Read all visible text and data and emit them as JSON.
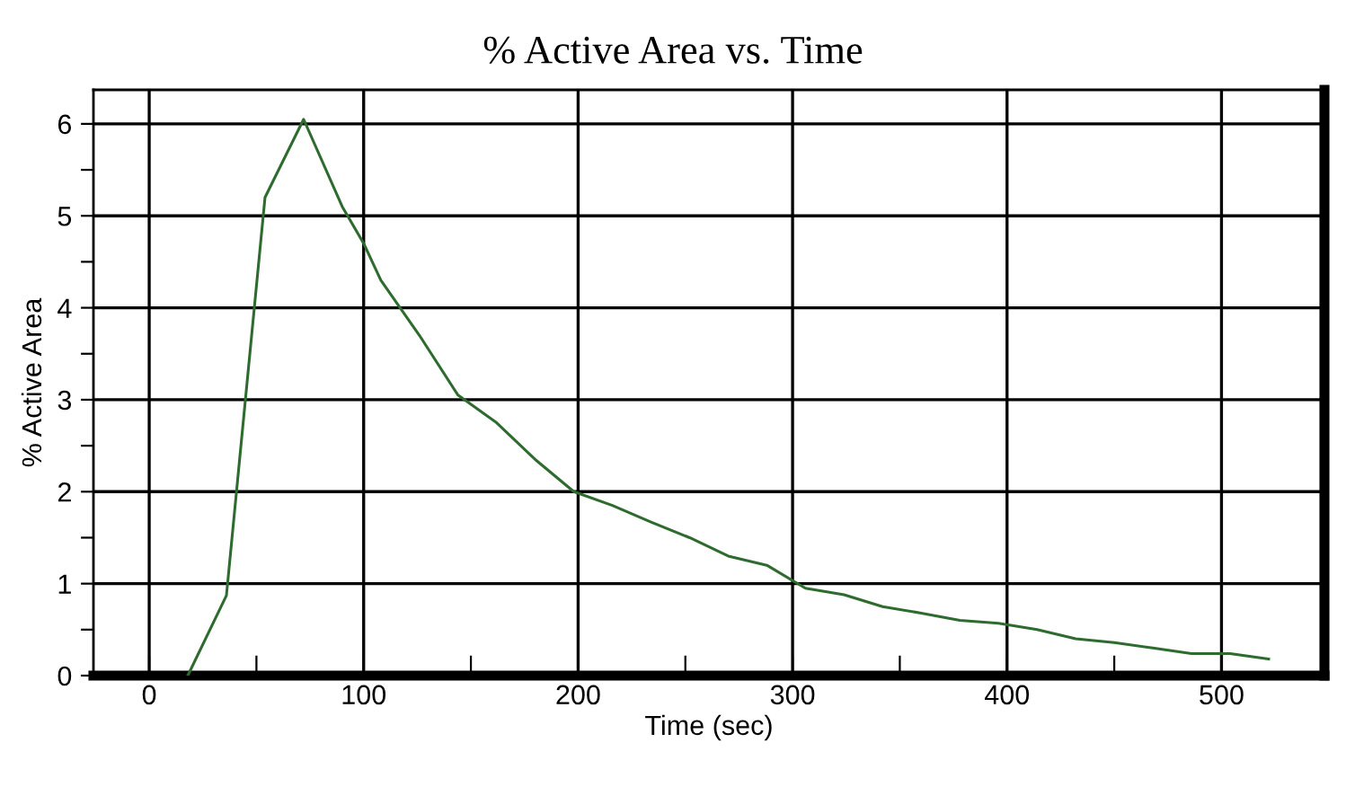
{
  "chart_data": {
    "type": "line",
    "title": "% Active Area vs. Time",
    "xlabel": "Time (sec)",
    "ylabel": "% Active Area",
    "x": [
      18,
      36,
      54,
      72,
      90,
      100,
      108,
      126,
      144,
      162,
      180,
      198,
      216,
      234,
      252,
      270,
      288,
      306,
      324,
      342,
      360,
      378,
      396,
      414,
      432,
      450,
      468,
      486,
      504,
      522
    ],
    "series": [
      {
        "color": "#2e6b2e",
        "values": [
          0,
          0.87,
          5.2,
          6.05,
          5.1,
          4.7,
          4.3,
          3.7,
          3.05,
          2.75,
          2.35,
          2.0,
          1.85,
          1.67,
          1.5,
          1.3,
          1.2,
          0.95,
          0.88,
          0.75,
          0.68,
          0.6,
          0.57,
          0.5,
          0.4,
          0.36,
          0.3,
          0.24,
          0.24,
          0.18
        ]
      }
    ],
    "xlim": [
      -26,
      548
    ],
    "ylim": [
      0,
      6.37
    ],
    "xticks": [
      0,
      {
        "value": 50,
        "label": null
      },
      100,
      {
        "value": 150,
        "label": null
      },
      200,
      {
        "value": 250,
        "label": null
      },
      300,
      {
        "value": 350,
        "label": null
      },
      400,
      {
        "value": 450,
        "label": null
      },
      500
    ],
    "yticks": [
      0,
      {
        "value": 0.5,
        "label": null
      },
      1,
      {
        "value": 1.5,
        "label": null
      },
      2,
      {
        "value": 2.5,
        "label": null
      },
      3,
      {
        "value": 3.5,
        "label": null
      },
      4,
      {
        "value": 4.5,
        "label": null
      },
      5,
      {
        "value": 5.5,
        "label": null
      },
      6
    ],
    "grid": true,
    "marker": "none",
    "line_style": "solid",
    "legend": false
  }
}
